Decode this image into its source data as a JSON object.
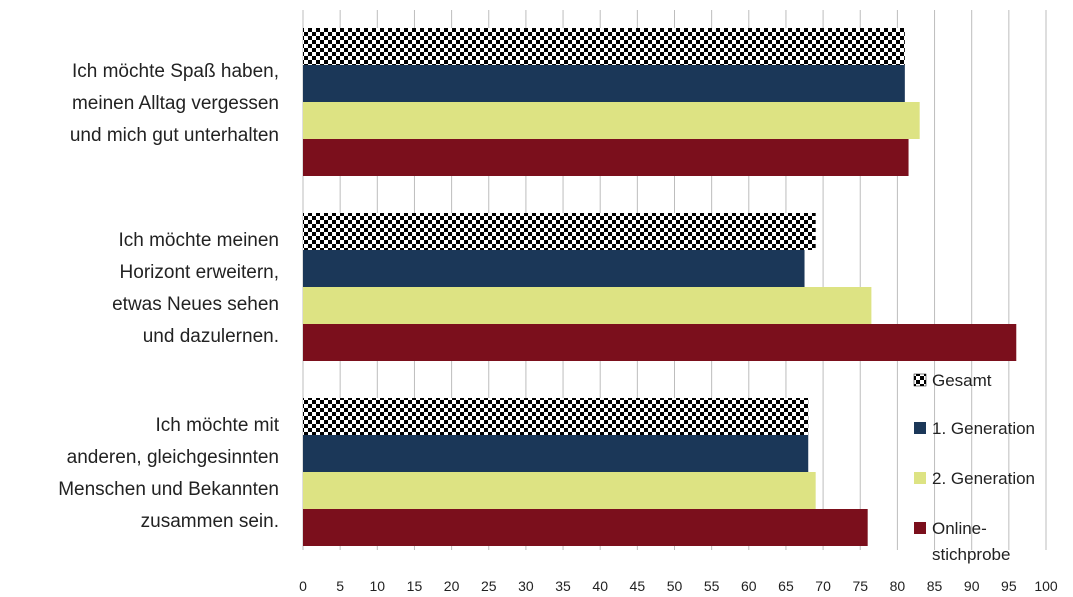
{
  "chart_data": {
    "type": "bar",
    "orientation": "horizontal",
    "categories": [
      [
        "Ich möchte Spaß haben,",
        "meinen Alltag vergessen",
        "und mich gut unterhalten"
      ],
      [
        "Ich möchte meinen",
        "Horizont erweitern,",
        "etwas Neues sehen",
        "und dazulernen."
      ],
      [
        "Ich möchte mit",
        "anderen, gleichgesinnten",
        "Menschen und Bekannten",
        "zusammen sein."
      ]
    ],
    "series": [
      {
        "name": "Gesamt",
        "color": "#000000",
        "pattern": "checkerboard",
        "values": [
          81,
          69,
          68
        ]
      },
      {
        "name": "1. Generation",
        "color": "#1b3758",
        "values": [
          81,
          67.5,
          68
        ]
      },
      {
        "name": "2. Generation",
        "color": "#dde383",
        "values": [
          83,
          76.5,
          69
        ]
      },
      {
        "name": [
          "Online-",
          "stichprobe"
        ],
        "color": "#7b0f1c",
        "values": [
          81.5,
          96,
          76
        ]
      }
    ],
    "xlim": [
      0,
      100
    ],
    "xticks": [
      0,
      5,
      10,
      15,
      20,
      25,
      30,
      35,
      40,
      45,
      50,
      55,
      60,
      65,
      70,
      75,
      80,
      85,
      90,
      95,
      100
    ],
    "grid": true,
    "legend_position": "bottom-right"
  }
}
